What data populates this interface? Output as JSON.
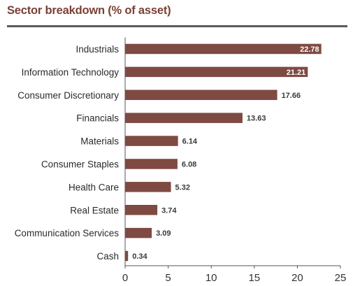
{
  "header": {
    "title": "Sector breakdown (% of asset)"
  },
  "chart_data": {
    "type": "bar",
    "orientation": "horizontal",
    "categories": [
      "Industrials",
      "Information Technology",
      "Consumer Discretionary",
      "Financials",
      "Materials",
      "Consumer Staples",
      "Health Care",
      "Real Estate",
      "Communication Services",
      "Cash"
    ],
    "values": [
      22.78,
      21.21,
      17.66,
      13.63,
      6.14,
      6.08,
      5.32,
      3.74,
      3.09,
      0.34
    ],
    "value_labels": [
      "22.78",
      "21.21",
      "17.66",
      "13.63",
      "6.14",
      "6.08",
      "5.32",
      "3.74",
      "3.09",
      "0.34"
    ],
    "title": "Sector breakdown (% of asset)",
    "xlabel": "",
    "ylabel": "",
    "xlim": [
      0,
      25
    ],
    "xticks": [
      0,
      5,
      10,
      15,
      20,
      25
    ],
    "xtick_labels": [
      "0",
      "5",
      "10",
      "15",
      "20",
      "25"
    ],
    "grid": false,
    "legend": "none",
    "colors": {
      "bar": "#7e4a42",
      "title": "#7b3f35",
      "axis": "#555555"
    }
  }
}
